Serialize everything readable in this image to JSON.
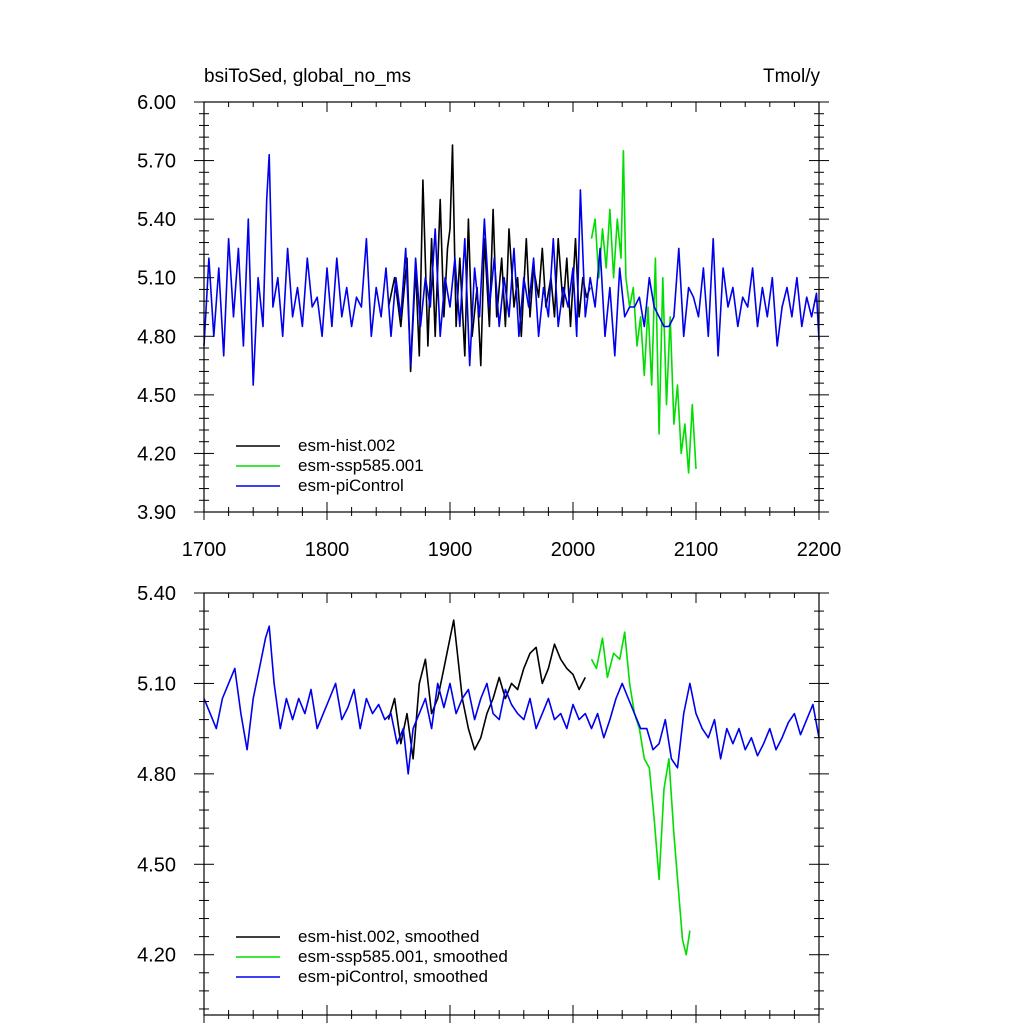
{
  "chart_data": [
    {
      "type": "line",
      "title_left": "bsiToSed, global_no_ms",
      "title_right": "Tmol/y",
      "xlabel": "",
      "ylabel": "",
      "xlim": [
        1700,
        2200
      ],
      "ylim": [
        3.9,
        6.0
      ],
      "x_ticks": [
        1700,
        1800,
        1900,
        2000,
        2100,
        2200
      ],
      "x_tick_labels": [
        "1700",
        "1800",
        "1900",
        "2000",
        "2100",
        "2200"
      ],
      "y_ticks": [
        3.9,
        4.2,
        4.5,
        4.8,
        5.1,
        5.4,
        5.7,
        6.0
      ],
      "y_tick_labels": [
        "3.90",
        "4.20",
        "4.50",
        "4.80",
        "5.10",
        "5.40",
        "5.70",
        "6.00"
      ],
      "legend_position": "bottom-left",
      "series": [
        {
          "name": "esm-hist.002",
          "color": "#000000",
          "x": [
            1850,
            1855,
            1860,
            1865,
            1868,
            1872,
            1875,
            1878,
            1882,
            1885,
            1888,
            1892,
            1895,
            1898,
            1900,
            1902,
            1905,
            1908,
            1912,
            1915,
            1918,
            1922,
            1925,
            1928,
            1932,
            1935,
            1938,
            1942,
            1945,
            1948,
            1952,
            1955,
            1958,
            1962,
            1965,
            1968,
            1972,
            1975,
            1978,
            1982,
            1985,
            1988,
            1992,
            1995,
            1998,
            2002,
            2005,
            2008,
            2011,
            2014
          ],
          "values": [
            4.95,
            5.1,
            4.85,
            5.2,
            4.62,
            5.15,
            4.7,
            5.6,
            4.75,
            5.3,
            4.8,
            5.5,
            4.9,
            5.25,
            5.35,
            5.78,
            4.85,
            5.2,
            4.7,
            5.4,
            4.8,
            5.05,
            4.65,
            5.3,
            4.85,
            5.45,
            4.9,
            5.2,
            4.85,
            5.35,
            4.95,
            5.1,
            4.8,
            5.3,
            4.9,
            5.15,
            5.0,
            5.25,
            4.95,
            5.1,
            4.9,
            5.3,
            4.95,
            5.2,
            4.85,
            5.3,
            4.9,
            5.1,
            5.0,
            5.05
          ]
        },
        {
          "name": "esm-ssp585.001",
          "color": "#00dd00",
          "x": [
            2015,
            2018,
            2021,
            2024,
            2027,
            2030,
            2033,
            2036,
            2039,
            2041,
            2043,
            2046,
            2049,
            2052,
            2055,
            2058,
            2061,
            2064,
            2067,
            2070,
            2073,
            2076,
            2079,
            2082,
            2085,
            2088,
            2091,
            2094,
            2097,
            2100
          ],
          "values": [
            5.3,
            5.4,
            5.1,
            5.35,
            5.15,
            5.45,
            5.1,
            5.4,
            5.2,
            5.75,
            5.1,
            4.95,
            5.05,
            4.75,
            4.9,
            4.6,
            4.95,
            4.55,
            5.2,
            4.3,
            5.1,
            4.45,
            4.9,
            4.35,
            4.55,
            4.2,
            4.35,
            4.1,
            4.45,
            4.12
          ]
        },
        {
          "name": "esm-piControl",
          "color": "#0000ee",
          "x": [
            1700,
            1704,
            1708,
            1712,
            1716,
            1720,
            1724,
            1728,
            1732,
            1736,
            1740,
            1744,
            1748,
            1751,
            1753,
            1756,
            1760,
            1764,
            1768,
            1772,
            1776,
            1780,
            1784,
            1788,
            1792,
            1796,
            1800,
            1804,
            1808,
            1812,
            1816,
            1820,
            1824,
            1828,
            1832,
            1836,
            1840,
            1844,
            1848,
            1852,
            1856,
            1860,
            1864,
            1868,
            1872,
            1876,
            1880,
            1884,
            1888,
            1892,
            1896,
            1900,
            1904,
            1908,
            1912,
            1916,
            1920,
            1924,
            1928,
            1932,
            1936,
            1940,
            1944,
            1948,
            1952,
            1956,
            1960,
            1964,
            1968,
            1972,
            1976,
            1980,
            1984,
            1988,
            1992,
            1996,
            2000,
            2003,
            2006,
            2010,
            2014,
            2018,
            2022,
            2026,
            2030,
            2034,
            2038,
            2042,
            2046,
            2050,
            2054,
            2058,
            2062,
            2066,
            2070,
            2074,
            2078,
            2082,
            2086,
            2090,
            2094,
            2098,
            2102,
            2106,
            2110,
            2114,
            2118,
            2122,
            2126,
            2130,
            2134,
            2138,
            2142,
            2146,
            2150,
            2154,
            2158,
            2162,
            2166,
            2170,
            2174,
            2178,
            2182,
            2186,
            2190,
            2194,
            2198,
            2200
          ],
          "values": [
            4.75,
            5.2,
            4.8,
            5.15,
            4.7,
            5.3,
            4.9,
            5.25,
            4.75,
            5.4,
            4.55,
            5.1,
            4.85,
            5.5,
            5.73,
            4.95,
            5.1,
            4.8,
            5.25,
            4.9,
            5.05,
            4.85,
            5.2,
            4.95,
            5.0,
            4.8,
            5.15,
            4.85,
            5.2,
            4.9,
            5.05,
            4.85,
            5.0,
            4.95,
            5.3,
            4.8,
            5.05,
            4.9,
            5.15,
            4.8,
            5.1,
            4.9,
            5.25,
            4.65,
            5.2,
            4.85,
            5.1,
            4.95,
            5.35,
            4.8,
            5.1,
            4.95,
            5.2,
            4.85,
            5.3,
            4.65,
            5.15,
            4.9,
            5.4,
            4.95,
            5.2,
            4.85,
            5.1,
            4.9,
            5.25,
            4.8,
            5.1,
            4.95,
            5.2,
            4.8,
            5.05,
            4.9,
            5.3,
            4.85,
            5.05,
            4.95,
            5.15,
            4.8,
            5.55,
            4.9,
            5.1,
            4.95,
            5.25,
            4.8,
            5.05,
            4.7,
            5.15,
            4.9,
            4.95,
            4.95,
            5.0,
            4.85,
            5.1,
            4.95,
            4.9,
            4.85,
            4.85,
            4.9,
            5.25,
            4.8,
            5.05,
            5.0,
            4.9,
            5.15,
            4.8,
            5.3,
            4.7,
            5.15,
            4.95,
            5.05,
            4.85,
            5.0,
            4.95,
            5.15,
            4.85,
            5.05,
            4.9,
            5.1,
            4.75,
            4.95,
            5.05,
            4.9,
            5.1,
            4.85,
            5.0,
            4.9,
            5.02,
            4.78
          ]
        }
      ]
    },
    {
      "type": "line",
      "xlabel": "",
      "ylabel": "",
      "xlim": [
        1700,
        2200
      ],
      "ylim": [
        4.0,
        5.4
      ],
      "x_ticks": [
        1700,
        1800,
        1900,
        2000,
        2100,
        2200
      ],
      "y_ticks": [
        4.2,
        4.5,
        4.8,
        5.1,
        5.4
      ],
      "y_tick_labels": [
        "4.20",
        "4.50",
        "4.80",
        "5.10",
        "5.40"
      ],
      "legend_position": "bottom-left",
      "series": [
        {
          "name": "esm-hist.002, smoothed",
          "color": "#000000",
          "x": [
            1850,
            1855,
            1860,
            1865,
            1870,
            1875,
            1880,
            1885,
            1890,
            1895,
            1900,
            1903,
            1906,
            1910,
            1915,
            1920,
            1925,
            1930,
            1935,
            1940,
            1945,
            1950,
            1955,
            1960,
            1965,
            1970,
            1975,
            1980,
            1985,
            1990,
            1995,
            2000,
            2005,
            2010
          ],
          "values": [
            4.98,
            5.05,
            4.9,
            5.0,
            4.85,
            5.1,
            5.18,
            5.0,
            5.05,
            5.15,
            5.25,
            5.31,
            5.2,
            5.05,
            4.95,
            4.88,
            4.92,
            5.0,
            5.05,
            5.12,
            5.05,
            5.1,
            5.08,
            5.15,
            5.2,
            5.22,
            5.1,
            5.15,
            5.23,
            5.18,
            5.15,
            5.13,
            5.08,
            5.12
          ]
        },
        {
          "name": "esm-ssp585.001, smoothed",
          "color": "#00dd00",
          "x": [
            2015,
            2019,
            2024,
            2028,
            2033,
            2038,
            2042,
            2046,
            2050,
            2054,
            2058,
            2062,
            2066,
            2070,
            2074,
            2078,
            2082,
            2086,
            2089,
            2092,
            2095
          ],
          "values": [
            5.18,
            5.15,
            5.25,
            5.12,
            5.2,
            5.18,
            5.27,
            5.1,
            5.0,
            4.95,
            4.85,
            4.82,
            4.65,
            4.45,
            4.75,
            4.85,
            4.6,
            4.4,
            4.25,
            4.2,
            4.28
          ]
        },
        {
          "name": "esm-piControl, smoothed",
          "color": "#0000ee",
          "x": [
            1700,
            1705,
            1710,
            1715,
            1720,
            1725,
            1730,
            1735,
            1740,
            1745,
            1750,
            1753,
            1757,
            1762,
            1767,
            1772,
            1777,
            1782,
            1787,
            1792,
            1797,
            1802,
            1807,
            1812,
            1817,
            1822,
            1827,
            1832,
            1837,
            1842,
            1847,
            1852,
            1857,
            1862,
            1866,
            1870,
            1875,
            1880,
            1885,
            1890,
            1895,
            1900,
            1905,
            1910,
            1915,
            1920,
            1925,
            1930,
            1935,
            1940,
            1945,
            1950,
            1955,
            1960,
            1965,
            1970,
            1975,
            1980,
            1985,
            1990,
            1995,
            2000,
            2005,
            2010,
            2015,
            2020,
            2025,
            2030,
            2035,
            2040,
            2045,
            2050,
            2055,
            2060,
            2065,
            2070,
            2075,
            2080,
            2085,
            2090,
            2095,
            2100,
            2105,
            2110,
            2115,
            2120,
            2125,
            2130,
            2135,
            2140,
            2145,
            2150,
            2155,
            2160,
            2165,
            2170,
            2175,
            2180,
            2185,
            2190,
            2195,
            2200
          ],
          "values": [
            5.05,
            5.0,
            4.95,
            5.05,
            5.1,
            5.15,
            5.0,
            4.88,
            5.05,
            5.15,
            5.25,
            5.29,
            5.1,
            4.95,
            5.05,
            4.98,
            5.05,
            5.0,
            5.08,
            4.95,
            5.0,
            5.05,
            5.1,
            4.98,
            5.02,
            5.08,
            4.95,
            5.05,
            5.0,
            5.03,
            4.98,
            5.0,
            4.9,
            4.95,
            4.8,
            4.95,
            5.0,
            5.05,
            4.95,
            5.1,
            5.02,
            5.1,
            5.0,
            5.05,
            5.08,
            4.98,
            5.05,
            5.1,
            5.0,
            4.98,
            5.08,
            5.03,
            5.0,
            4.98,
            5.05,
            4.95,
            5.0,
            5.05,
            4.98,
            5.0,
            4.95,
            5.03,
            4.98,
            5.0,
            4.95,
            5.0,
            4.92,
            4.98,
            5.05,
            5.1,
            5.05,
            5.0,
            4.95,
            4.95,
            4.88,
            4.9,
            4.98,
            4.85,
            4.82,
            5.0,
            5.1,
            5.0,
            4.95,
            4.92,
            4.98,
            4.85,
            4.95,
            4.9,
            4.95,
            4.88,
            4.92,
            4.86,
            4.9,
            4.95,
            4.88,
            4.92,
            4.97,
            5.0,
            4.93,
            4.98,
            5.03,
            4.92
          ]
        }
      ]
    }
  ]
}
